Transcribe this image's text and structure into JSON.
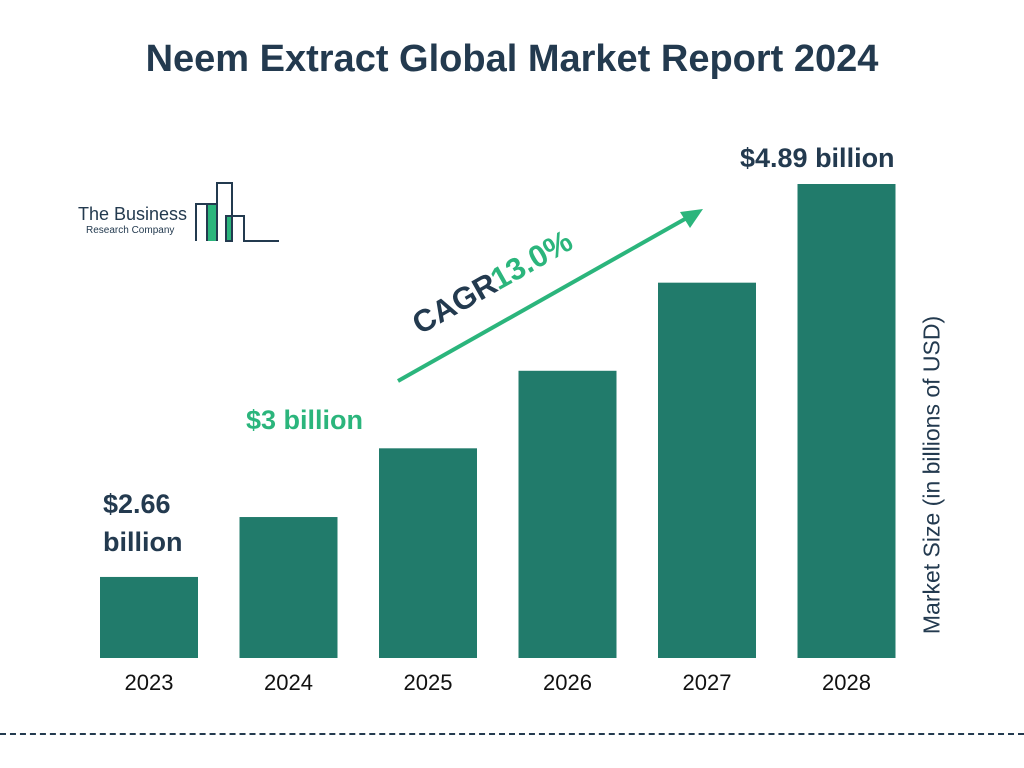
{
  "title": "Neem Extract Global Market Report 2024",
  "logo": {
    "line1": "The Business",
    "line2": "Research Company"
  },
  "chart_data": {
    "type": "bar",
    "categories": [
      "2023",
      "2024",
      "2025",
      "2026",
      "2027",
      "2028"
    ],
    "values": [
      2.66,
      3.0,
      3.39,
      3.83,
      4.33,
      4.89
    ],
    "ylabel": "Market Size (in billions of USD)",
    "ylim": [
      2.2,
      4.89
    ],
    "grid": false,
    "bar_color": "#217b6b",
    "accent_color": "#2bb57c",
    "annotations": {
      "label_2023": "$2.66 billion",
      "label_2023_line1": "$2.66",
      "label_2023_line2": "billion",
      "label_2024": "$3 billion",
      "label_2028": "$4.89 billion",
      "cagr_text": "CAGR",
      "cagr_value": "13.0%"
    }
  }
}
